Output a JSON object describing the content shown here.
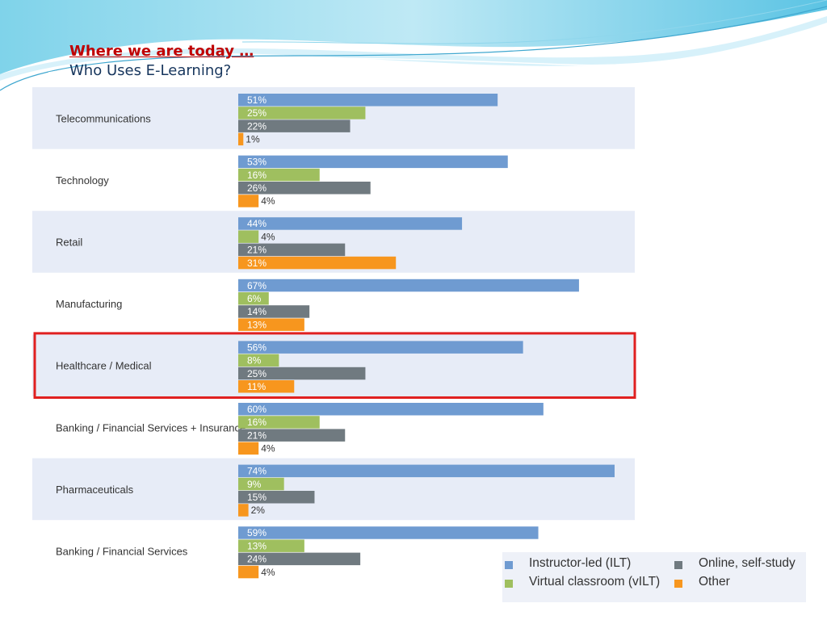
{
  "slide": {
    "title": "Where we are today …",
    "subtitle": "Who Uses E-Learning?"
  },
  "colors": {
    "band": "#e7ecf7",
    "highlight": "#e02020",
    "label_light": "#ffffff",
    "label_dark": "#333333"
  },
  "chart_data": {
    "type": "bar",
    "orientation": "horizontal",
    "grouped": true,
    "categories": [
      "Telecommunications",
      "Technology",
      "Retail",
      "Manufacturing",
      "Healthcare / Medical",
      "Banking / Financial Services + Insurance",
      "Pharmaceuticals",
      "Banking / Financial Services"
    ],
    "series": [
      {
        "name": "Instructor-led (ILT)",
        "color": "#6f9bd1",
        "values": [
          51,
          53,
          44,
          67,
          56,
          60,
          74,
          59
        ]
      },
      {
        "name": "Virtual classroom (vILT)",
        "color": "#9fbf5f",
        "values": [
          25,
          16,
          4,
          6,
          8,
          16,
          9,
          13
        ]
      },
      {
        "name": "Online, self-study",
        "color": "#707a80",
        "values": [
          22,
          26,
          21,
          14,
          25,
          21,
          15,
          24
        ]
      },
      {
        "name": "Other",
        "color": "#f7961e",
        "values": [
          1,
          4,
          31,
          13,
          11,
          4,
          2,
          4
        ]
      }
    ],
    "value_suffix": "%",
    "xlim": [
      0,
      74
    ],
    "highlighted_category": "Healthcare / Medical",
    "legend_position": "bottom-right",
    "grid": false
  }
}
